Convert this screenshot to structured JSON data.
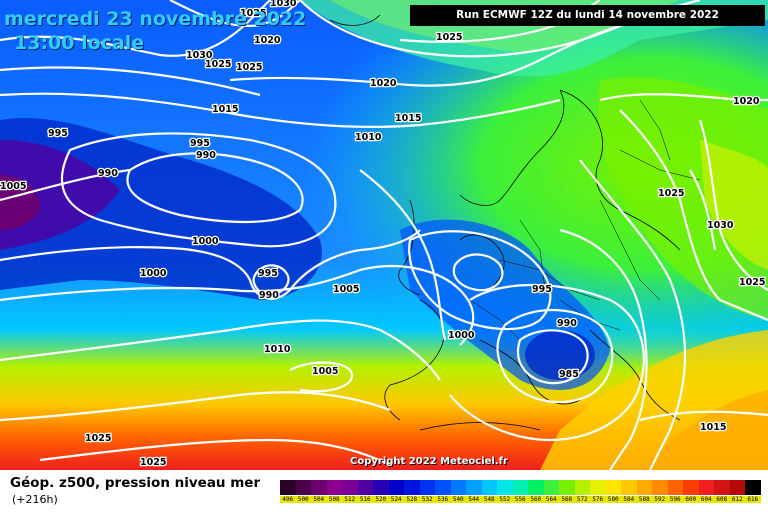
{
  "header": {
    "date": "mercredi 23 novembre 2022",
    "time": "13:00 locale",
    "run": "Run ECMWF 12Z du lundi 14 novembre 2022"
  },
  "copyright": "Copyright 2022 Meteociel.fr",
  "footer": {
    "title": "Géop. z500, pression niveau mer",
    "forecast_hour": "(+216h)"
  },
  "legend": {
    "values": [
      "496",
      "500",
      "504",
      "508",
      "512",
      "516",
      "520",
      "524",
      "528",
      "532",
      "536",
      "540",
      "544",
      "548",
      "552",
      "556",
      "560",
      "564",
      "568",
      "572",
      "576",
      "580",
      "584",
      "588",
      "592",
      "596",
      "600",
      "604",
      "608",
      "612",
      "616"
    ],
    "colors": [
      "#280028",
      "#4b004b",
      "#6e006e",
      "#8c008c",
      "#7a0096",
      "#5000a0",
      "#2800b4",
      "#0000c8",
      "#0014e0",
      "#0032f0",
      "#0050ff",
      "#0078ff",
      "#00a0ff",
      "#00c8ff",
      "#00e6e6",
      "#00f0b4",
      "#00f064",
      "#3cf03c",
      "#78f000",
      "#b4f000",
      "#e6f000",
      "#ffe600",
      "#ffc800",
      "#ffaa00",
      "#ff8c00",
      "#ff6400",
      "#ff3c00",
      "#f01e1e",
      "#d21414",
      "#b40a0a",
      "#000000"
    ]
  },
  "isobar_labels": [
    "1030",
    "1025",
    "1020",
    "1025",
    "1030",
    "1025",
    "1025",
    "1020",
    "1015",
    "1020",
    "1015",
    "995",
    "995",
    "990",
    "1010",
    "1005",
    "990",
    "1000",
    "1000",
    "995",
    "990",
    "1005",
    "1025",
    "995",
    "1030",
    "990",
    "1025",
    "1000",
    "1010",
    "1005",
    "985",
    "1015",
    "1025",
    "1025"
  ]
}
